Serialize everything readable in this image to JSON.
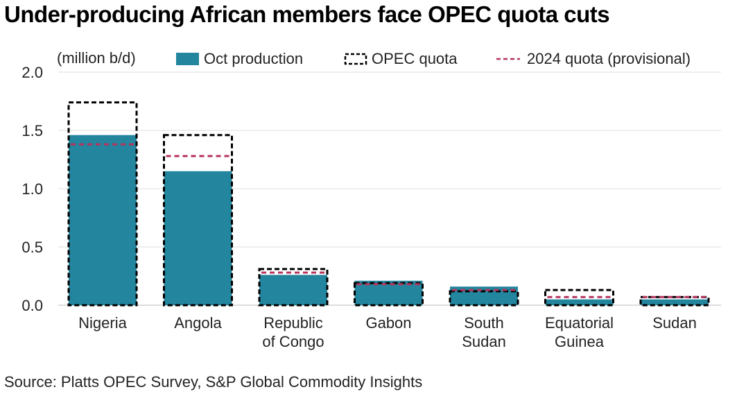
{
  "title": "Under-producing African members face OPEC quota cuts",
  "source": "Source: Platts OPEC Survey, S&P Global Commodity Insights",
  "colors": {
    "production": "#23869e",
    "quota": "#000000",
    "quota_2024": "#b5325c",
    "grid": "#dddddd"
  },
  "chart_data": {
    "type": "bar",
    "ylabel": "(million b/d)",
    "ylim": [
      0,
      2.0
    ],
    "yticks": [
      "0.0",
      "0.5",
      "1.0",
      "1.5",
      "2.0"
    ],
    "grid": true,
    "legend_placement": "top",
    "categories": [
      [
        "Nigeria"
      ],
      [
        "Angola"
      ],
      [
        "Republic",
        "of Congo"
      ],
      [
        "Gabon"
      ],
      [
        "South",
        "Sudan"
      ],
      [
        "Equatorial",
        "Guinea"
      ],
      [
        "Sudan"
      ]
    ],
    "series": [
      {
        "name": "Oct production",
        "values": [
          1.46,
          1.15,
          0.26,
          0.21,
          0.16,
          0.05,
          0.05
        ]
      },
      {
        "name": "OPEC quota",
        "values": [
          1.74,
          1.46,
          0.31,
          0.19,
          0.12,
          0.13,
          0.07
        ]
      },
      {
        "name": "2024 quota (provisional)",
        "values": [
          1.38,
          1.28,
          0.28,
          0.18,
          0.13,
          0.07,
          0.07
        ]
      }
    ]
  }
}
